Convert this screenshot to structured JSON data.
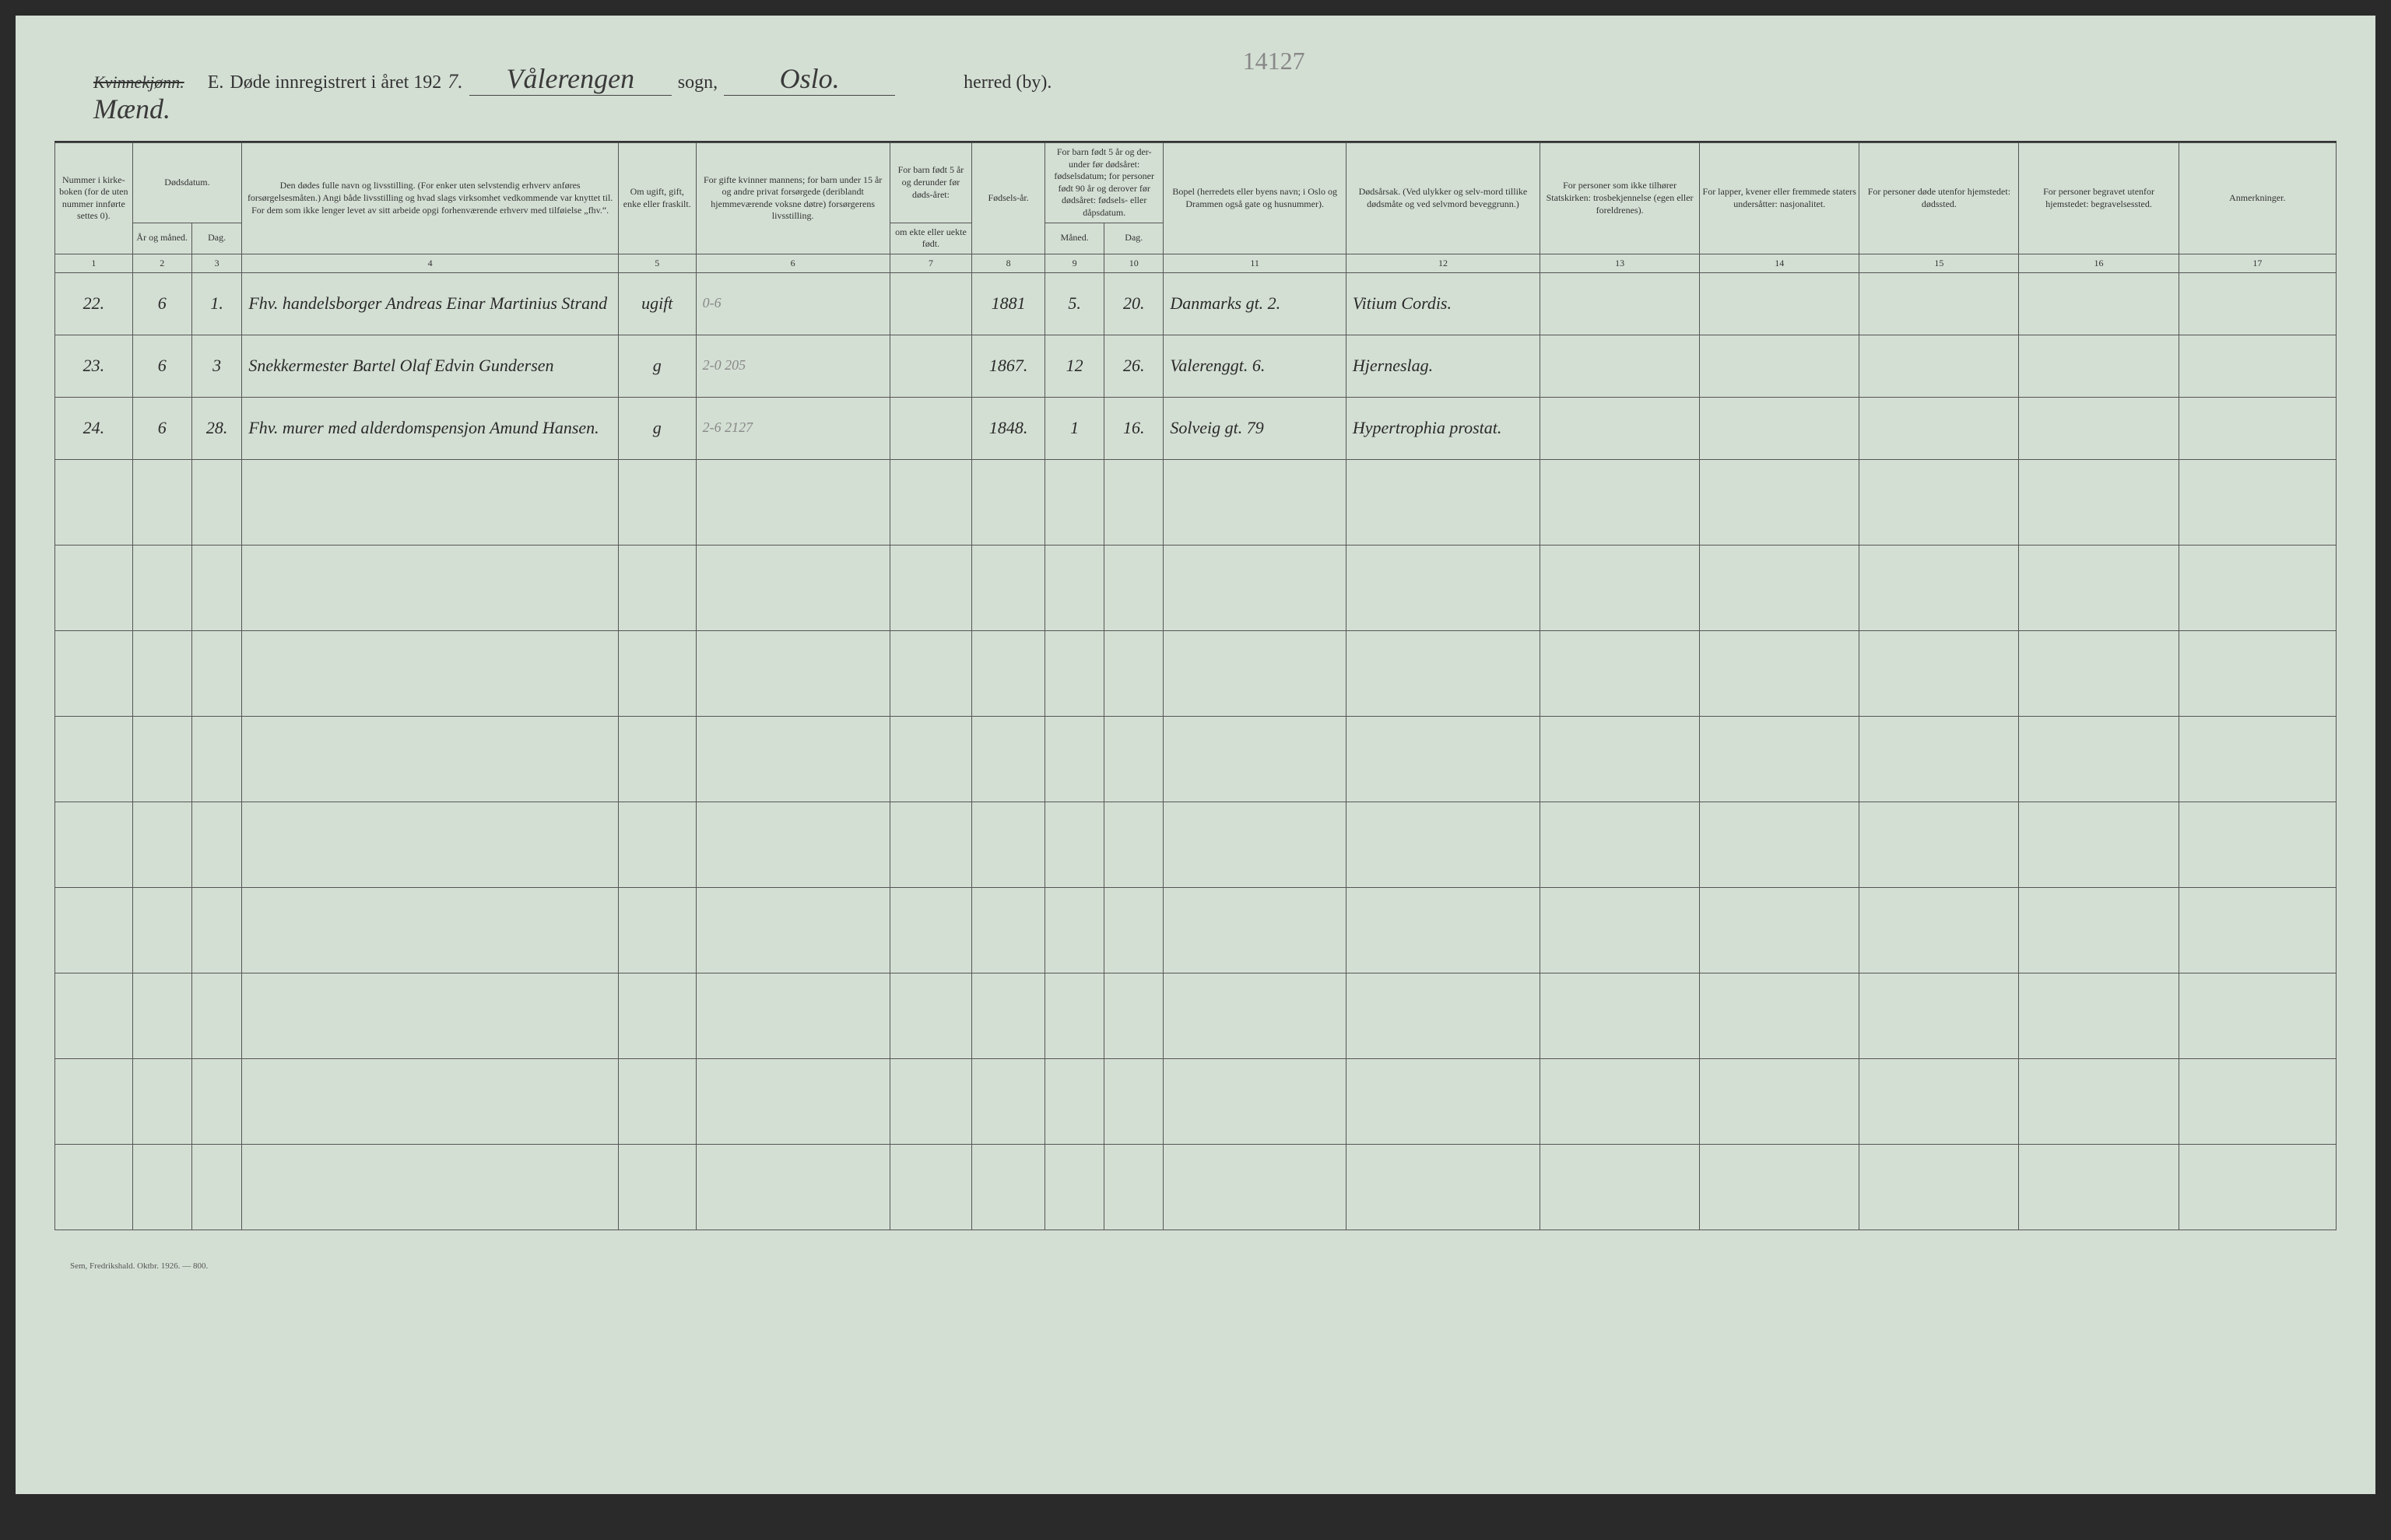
{
  "header": {
    "strikethrough": "Kvinnekjønn.",
    "gender_handwritten": "Mænd.",
    "form_letter": "E.",
    "title_prefix": "Døde innregistrert i året 192",
    "year_suffix": "7.",
    "sogn_value": "Vålerengen",
    "pencil_number": "14127",
    "sogn_label": "sogn,",
    "herred_value": "Oslo.",
    "herred_label": "herred (by)."
  },
  "columns": {
    "c1": "Nummer i kirke-boken (for de uten nummer innførte settes 0).",
    "c2_top": "Dødsdatum.",
    "c2a": "År og måned.",
    "c2b": "Dag.",
    "c3": "Den dødes fulle navn og livsstilling. (For enker uten selvstendig erhverv anføres forsørgelsesmåten.) Angi både livsstilling og hvad slags virksomhet vedkommende var knyttet til. For dem som ikke lenger levet av sitt arbeide opgi forhenværende erhverv med tilføielse „fhv.“.",
    "c4": "Om ugift, gift, enke eller fraskilt.",
    "c5": "For gifte kvinner mannens; for barn under 15 år og andre privat forsørgede (deriblandt hjemmeværende voksne døtre) forsørgerens livsstilling.",
    "c6_top": "For barn født 5 år og derunder før døds-året:",
    "c6": "om ekte eller uekte født.",
    "c7": "Fødsels-år.",
    "c8_top": "For barn født 5 år og der-under før dødsåret: fødselsdatum; for personer født 90 år og derover før dødsåret: fødsels- eller dåpsdatum.",
    "c8a": "Måned.",
    "c8b": "Dag.",
    "c9": "Bopel (herredets eller byens navn; i Oslo og Drammen også gate og husnummer).",
    "c10": "Dødsårsak. (Ved ulykker og selv-mord tillike dødsmåte og ved selvmord beveggrunn.)",
    "c11": "For personer som ikke tilhører Statskirken: trosbekjennelse (egen eller foreldrenes).",
    "c12": "For lapper, kvener eller fremmede staters undersåtter: nasjonalitet.",
    "c13": "For personer døde utenfor hjemstedet: dødssted.",
    "c14": "For personer begravet utenfor hjemstedet: begravelsessted.",
    "c15": "Anmerkninger."
  },
  "colnums": [
    "1",
    "2",
    "3",
    "4",
    "5",
    "6",
    "7",
    "8",
    "9",
    "10",
    "11",
    "12",
    "13",
    "14",
    "15",
    "16",
    "17"
  ],
  "rows": [
    {
      "mark": "✗",
      "num": "22.",
      "aar_mnd": "6",
      "dag": "1.",
      "navn": "Fhv. handelsborger Andreas Einar Martinius Strand",
      "sivil": "ugift",
      "pencil": "0-6",
      "forsorg": "",
      "ekte": "",
      "faar": "1881",
      "fmnd": "5.",
      "fdag": "20.",
      "bopel": "Danmarks gt. 2.",
      "dodsarsak": "Vitium Cordis.",
      "tros": "",
      "nasj": "",
      "dsted": "",
      "bsted": "",
      "anm": ""
    },
    {
      "mark": "✗",
      "num": "23.",
      "aar_mnd": "6",
      "dag": "3",
      "navn": "Snekkermester Bartel Olaf Edvin Gundersen",
      "sivil": "g",
      "pencil": "2-0   205",
      "forsorg": "",
      "ekte": "",
      "faar": "1867.",
      "fmnd": "12",
      "fdag": "26.",
      "bopel": "Valerenggt. 6.",
      "dodsarsak": "Hjerneslag.",
      "tros": "",
      "nasj": "",
      "dsted": "",
      "bsted": "",
      "anm": ""
    },
    {
      "mark": "✗",
      "num": "24.",
      "aar_mnd": "6",
      "dag": "28.",
      "navn": "Fhv. murer med alderdomspensjon Amund Hansen.",
      "sivil": "g",
      "pencil": "2-6   2127",
      "forsorg": "",
      "ekte": "",
      "faar": "1848.",
      "fmnd": "1",
      "fdag": "16.",
      "bopel": "Solveig gt. 79",
      "dodsarsak": "Hypertrophia prostat.",
      "tros": "",
      "nasj": "",
      "dsted": "",
      "bsted": "",
      "anm": ""
    }
  ],
  "footer": "Sem, Fredrikshald. Oktbr. 1926. — 800.",
  "colors": {
    "page_bg": "#d4dfd4",
    "ink": "#333333",
    "handwriting": "#2a2a2a",
    "red_mark": "#b03030",
    "pencil": "#888888",
    "border": "#555555"
  },
  "layout": {
    "col_widths_pct": [
      3.4,
      2.6,
      2.2,
      16.5,
      3.4,
      8.5,
      3.6,
      3.2,
      2.6,
      2.6,
      8.0,
      8.5,
      7.0,
      7.0,
      7.0,
      7.0,
      6.9
    ],
    "empty_rows": 9
  }
}
